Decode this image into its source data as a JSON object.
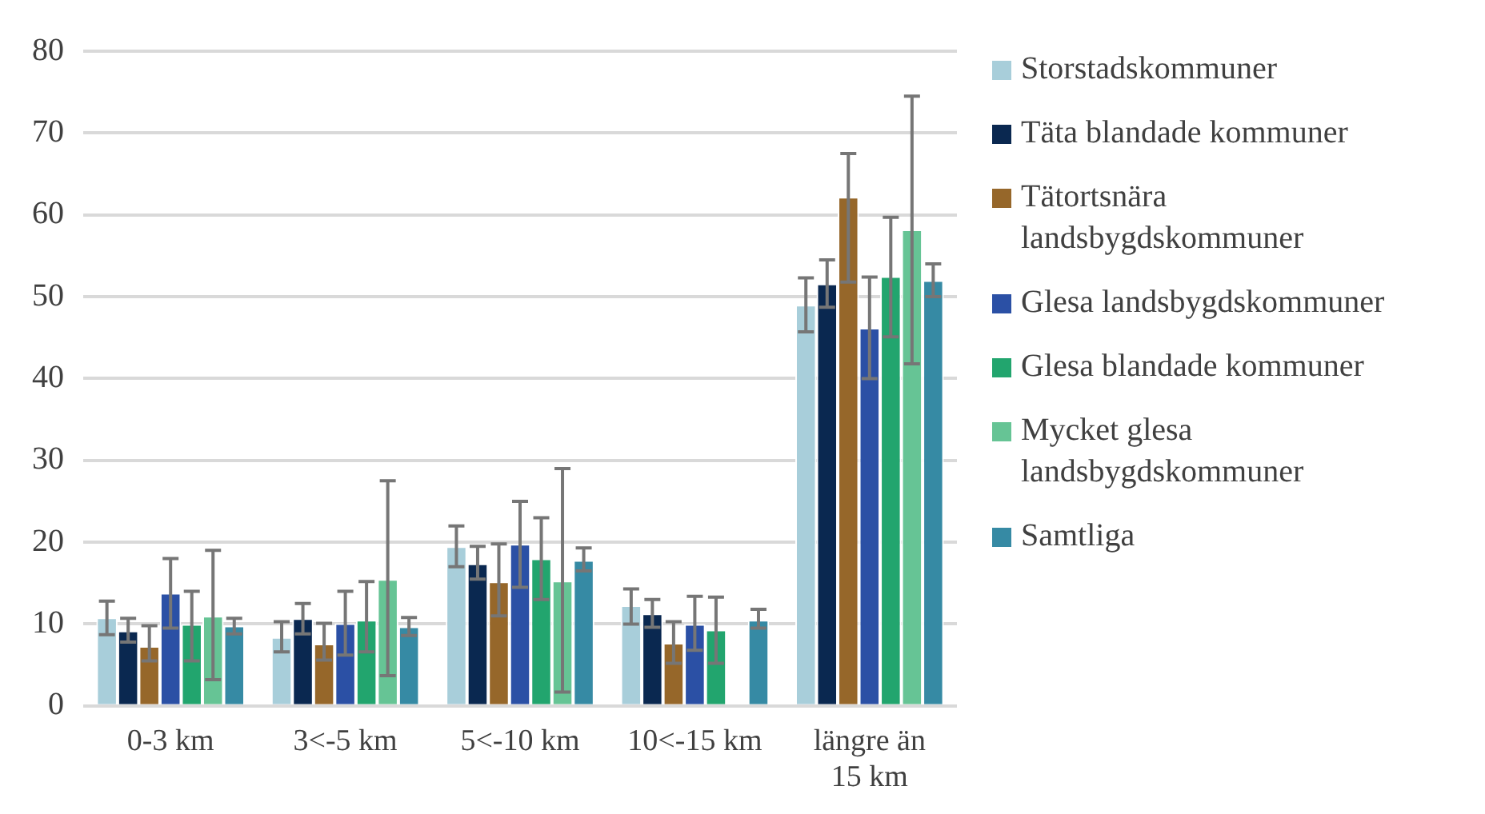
{
  "chart_data": {
    "type": "bar",
    "categories": [
      "0-3 km",
      "3<-5 km",
      "5<-10 km",
      "10<-15 km",
      "längre än 15 km"
    ],
    "series": [
      {
        "name": "Storstadskommuner",
        "color": "#a8ceda",
        "values": [
          10.8,
          8.4,
          19.5,
          12.3,
          49
        ],
        "errors": [
          [
            8.7,
            12.8
          ],
          [
            6.6,
            10.3
          ],
          [
            17,
            22
          ],
          [
            10,
            14.3
          ],
          [
            45.7,
            52.3
          ]
        ]
      },
      {
        "name": "Täta blandade kommuner",
        "color": "#0a2850",
        "values": [
          9.2,
          10.7,
          17.4,
          11.3,
          51.6
        ],
        "errors": [
          [
            7.8,
            10.7
          ],
          [
            8.8,
            12.5
          ],
          [
            15.5,
            19.5
          ],
          [
            9.6,
            13
          ],
          [
            48.7,
            54.5
          ]
        ]
      },
      {
        "name": "Tätortsnära landsbygdskommuner",
        "color": "#96672a",
        "values": [
          7.3,
          7.6,
          15.2,
          7.7,
          62.2
        ],
        "errors": [
          [
            5.5,
            9.8
          ],
          [
            5.6,
            10.1
          ],
          [
            11,
            19.8
          ],
          [
            5.2,
            10.3
          ],
          [
            51.8,
            67.5
          ]
        ]
      },
      {
        "name": "Glesa landsbygdskommuner",
        "color": "#2b50a5",
        "values": [
          13.8,
          10.1,
          19.8,
          10,
          46.2
        ],
        "errors": [
          [
            9.5,
            18
          ],
          [
            6.2,
            14
          ],
          [
            14.5,
            25
          ],
          [
            6.8,
            13.4
          ],
          [
            40,
            52.4
          ]
        ]
      },
      {
        "name": "Glesa blandade kommuner",
        "color": "#22a56e",
        "values": [
          10,
          10.5,
          18,
          9.3,
          52.5
        ],
        "errors": [
          [
            5.5,
            14
          ],
          [
            6.6,
            15.2
          ],
          [
            13,
            23
          ],
          [
            5.2,
            13.3
          ],
          [
            45.1,
            59.7
          ]
        ]
      },
      {
        "name": "Mycket glesa landsbygdskommuner",
        "color": "#66c495",
        "values": [
          11,
          15.5,
          15.3,
          null,
          58.2
        ],
        "errors": [
          [
            3.2,
            19
          ],
          [
            3.7,
            27.5
          ],
          [
            1.7,
            29
          ],
          null,
          [
            41.8,
            74.5
          ]
        ]
      },
      {
        "name": "Samtliga",
        "color": "#368aa4",
        "values": [
          9.8,
          9.7,
          17.8,
          10.5,
          52
        ],
        "errors": [
          [
            8.8,
            10.7
          ],
          [
            8.6,
            10.8
          ],
          [
            16.5,
            19.3
          ],
          [
            9.5,
            11.8
          ],
          [
            50,
            54
          ]
        ]
      }
    ],
    "ylim": [
      0,
      80
    ],
    "yticks": [
      0,
      10,
      20,
      30,
      40,
      50,
      60,
      70,
      80
    ],
    "grid": "y",
    "legend": "right"
  }
}
